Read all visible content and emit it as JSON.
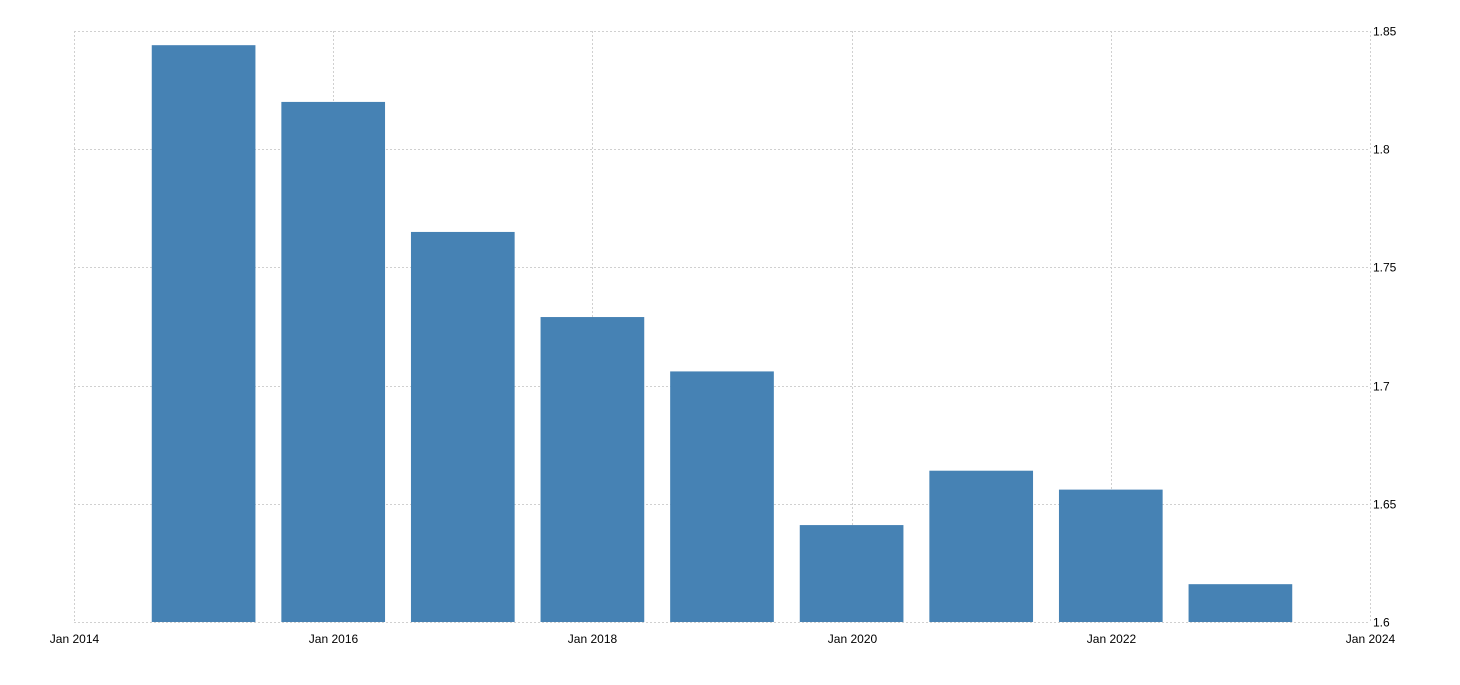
{
  "chart_data": {
    "type": "bar",
    "title": "",
    "xlabel": "",
    "ylabel": "",
    "x": [
      "2015-01",
      "2016-01",
      "2017-01",
      "2018-01",
      "2019-01",
      "2020-01",
      "2021-01",
      "2022-01",
      "2023-01"
    ],
    "values": [
      1.844,
      1.82,
      1.765,
      1.729,
      1.706,
      1.641,
      1.664,
      1.656,
      1.616
    ],
    "ylim": [
      1.6,
      1.85
    ],
    "xlim": [
      "2014-01",
      "2024-01"
    ],
    "y_ticks": [
      "1.6",
      "1.65",
      "1.7",
      "1.75",
      "1.8",
      "1.85"
    ],
    "x_ticks": [
      {
        "date": "2014-01",
        "label": "Jan 2014"
      },
      {
        "date": "2016-01",
        "label": "Jan 2016"
      },
      {
        "date": "2018-01",
        "label": "Jan 2018"
      },
      {
        "date": "2020-01",
        "label": "Jan 2020"
      },
      {
        "date": "2022-01",
        "label": "Jan 2022"
      },
      {
        "date": "2024-01",
        "label": "Jan 2024"
      }
    ],
    "y_axis_side": "right",
    "grid": true,
    "bar_color": "#4682b4",
    "grid_color": "#d0d0d0"
  }
}
